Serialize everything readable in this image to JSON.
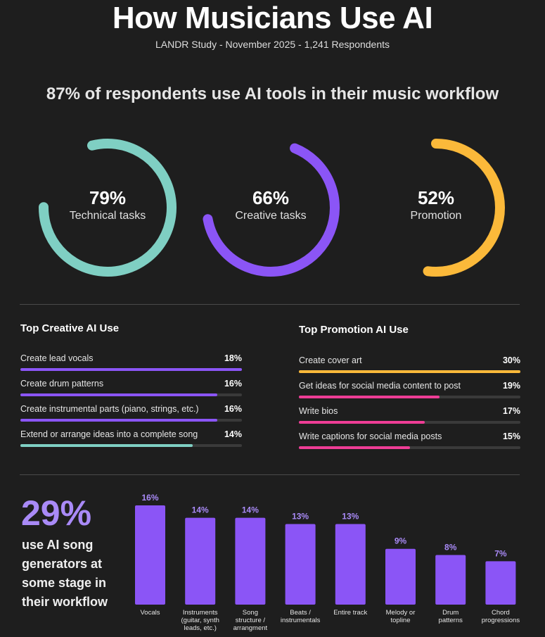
{
  "header": {
    "title": "How Musicians Use AI",
    "subtitle": "LANDR Study - November 2025 - 1,241 Respondents",
    "headline": "87% of respondents use AI tools in their music workflow"
  },
  "donuts": [
    {
      "pct_label": "79%",
      "value": 79,
      "label": "Technical tasks",
      "color": "#7fcfc3"
    },
    {
      "pct_label": "66%",
      "value": 66,
      "label": "Creative tasks",
      "color": "#8b55f6"
    },
    {
      "pct_label": "52%",
      "value": 52,
      "label": "Promotion",
      "color": "#fbb93a"
    }
  ],
  "creative": {
    "title": "Top Creative AI Use",
    "items": [
      {
        "label": "Create lead vocals",
        "value_label": "18%",
        "value": 18,
        "color": "#8b55f6"
      },
      {
        "label": "Create drum patterns",
        "value_label": "16%",
        "value": 16,
        "color": "#8b55f6"
      },
      {
        "label": "Create instrumental parts (piano, strings, etc.)",
        "value_label": "16%",
        "value": 16,
        "color": "#8b55f6"
      },
      {
        "label": "Extend or arrange ideas into a complete song",
        "value_label": "14%",
        "value": 14,
        "color": "#7fcfc3"
      }
    ]
  },
  "promotion": {
    "title": "Top Promotion AI Use",
    "items": [
      {
        "label": "Create cover art",
        "value_label": "30%",
        "value": 30,
        "color": "#fbb93a"
      },
      {
        "label": "Get ideas for social media content to post",
        "value_label": "19%",
        "value": 19,
        "color": "#ee3d96"
      },
      {
        "label": "Write bios",
        "value_label": "17%",
        "value": 17,
        "color": "#ee3d96"
      },
      {
        "label": "Write captions for social media posts",
        "value_label": "15%",
        "value": 15,
        "color": "#ee3d96"
      }
    ]
  },
  "generators": {
    "pct": "29%",
    "text": "use AI song generators at some stage in their workflow"
  },
  "chart_data": {
    "type": "bar",
    "title": "",
    "categories": [
      "Vocals",
      "Instruments (guitar, synth leads, etc.)",
      "Song structure / arrangment",
      "Beats / instrumentals",
      "Entire track",
      "Melody or topline",
      "Drum patterns",
      "Chord progressions"
    ],
    "category_lines": [
      [
        "Vocals"
      ],
      [
        "Instruments",
        "(guitar, synth",
        "leads, etc.)"
      ],
      [
        "Song",
        "structure /",
        "arrangment"
      ],
      [
        "Beats /",
        "instrumentals"
      ],
      [
        "Entire track"
      ],
      [
        "Melody or",
        "topline"
      ],
      [
        "Drum",
        "patterns"
      ],
      [
        "Chord",
        "progressions"
      ]
    ],
    "values": [
      16,
      14,
      14,
      13,
      13,
      9,
      8,
      7
    ],
    "value_labels": [
      "16%",
      "14%",
      "14%",
      "13%",
      "13%",
      "9%",
      "8%",
      "7%"
    ],
    "color": "#8b55f6",
    "label_color": "#a98af7",
    "ylim": [
      0,
      16
    ]
  }
}
